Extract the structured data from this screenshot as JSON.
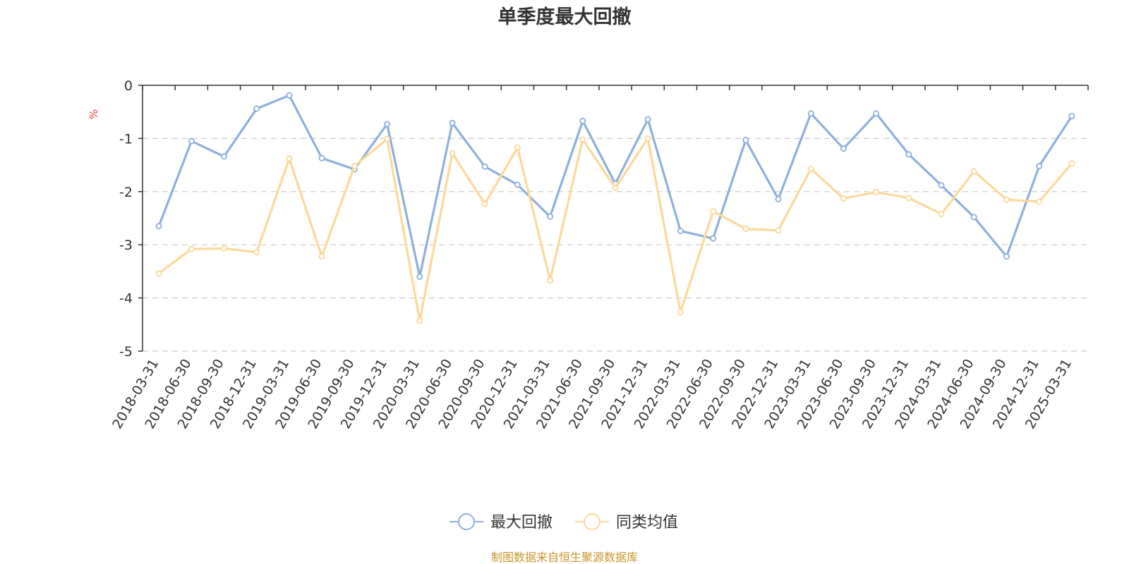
{
  "chart_data": {
    "type": "line",
    "title": "单季度最大回撤",
    "ylabel": "%",
    "ylim": [
      -5,
      0
    ],
    "yticks": [
      0,
      -1,
      -2,
      -3,
      -4,
      -5
    ],
    "grid": true,
    "legend_position": "bottom",
    "categories": [
      "2018-03-31",
      "2018-06-30",
      "2018-09-30",
      "2018-12-31",
      "2019-03-31",
      "2019-06-30",
      "2019-09-30",
      "2019-12-31",
      "2020-03-31",
      "2020-06-30",
      "2020-09-30",
      "2020-12-31",
      "2021-03-31",
      "2021-06-30",
      "2021-09-30",
      "2021-12-31",
      "2022-03-31",
      "2022-06-30",
      "2022-09-30",
      "2022-12-31",
      "2023-03-31",
      "2023-06-30",
      "2023-09-30",
      "2023-12-31",
      "2024-03-31",
      "2024-06-30",
      "2024-09-30",
      "2024-12-31",
      "2025-03-31"
    ],
    "series": [
      {
        "name": "最大回撤",
        "color": "#8eb0dc",
        "values": [
          -2.65,
          -1.05,
          -1.34,
          -0.44,
          -0.19,
          -1.37,
          -1.58,
          -0.73,
          -3.6,
          -0.71,
          -1.53,
          -1.87,
          -2.47,
          -0.67,
          -1.85,
          -0.64,
          -2.74,
          -2.88,
          -1.03,
          -2.14,
          -0.53,
          -1.19,
          -0.53,
          -1.3,
          -1.88,
          -2.48,
          -3.22,
          -1.52,
          -0.58
        ]
      },
      {
        "name": "同类均值",
        "color": "#fbd99a",
        "values": [
          -3.54,
          -3.08,
          -3.07,
          -3.14,
          -1.38,
          -3.22,
          -1.52,
          -1.01,
          -4.43,
          -1.28,
          -2.23,
          -1.17,
          -3.67,
          -1.02,
          -1.93,
          -1.0,
          -4.27,
          -2.37,
          -2.7,
          -2.73,
          -1.57,
          -2.13,
          -2.01,
          -2.12,
          -2.42,
          -1.62,
          -2.15,
          -2.19,
          -1.47
        ]
      }
    ]
  },
  "source_text": "制图数据来自恒生聚源数据库",
  "colors": {
    "unit": "#e8403c",
    "source": "#c8952a",
    "axis": "#333333",
    "grid": "#cccccc"
  }
}
